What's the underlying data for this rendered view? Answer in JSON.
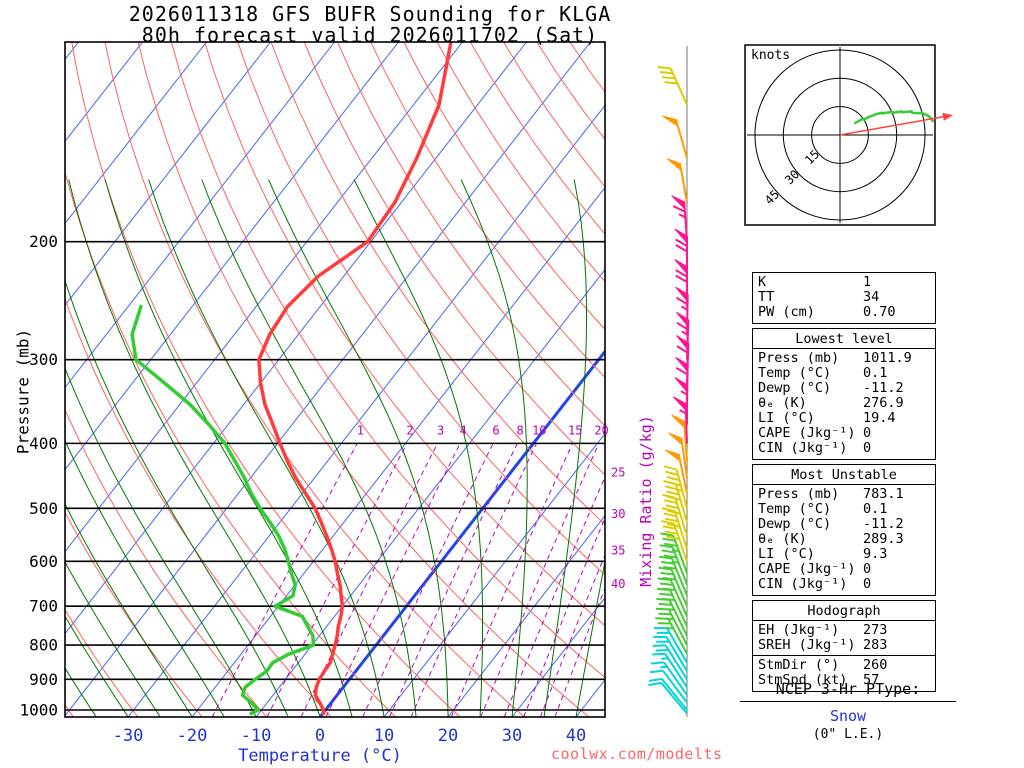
{
  "title": {
    "line1": "2026011318 GFS BUFR Sounding for KLGA",
    "line2": "80h forecast valid 2026011702 (Sat)"
  },
  "skewt": {
    "xlabel": "Temperature (°C)",
    "ylabel": "Pressure (mb)",
    "mixing_ratio_label": "Mixing Ratio (g/kg)",
    "pressure_ticks": [
      200,
      300,
      400,
      500,
      600,
      700,
      800,
      900,
      1000
    ],
    "temp_ticks": [
      -30,
      -20,
      -10,
      0,
      10,
      20,
      30,
      40
    ],
    "mixing_ratio_values": [
      1,
      2,
      3,
      4,
      6,
      8,
      10,
      15,
      20,
      25,
      30,
      35,
      40
    ],
    "colors": {
      "isotherm": "#4466EE",
      "zero_isotherm": "#2244EE",
      "dry_adiabat": "#FF6060",
      "moist_adiabat": "#007700",
      "mixing_ratio": "#BB00BB",
      "temperature": "#FF3B3B",
      "dewpoint": "#33CC33",
      "temp_axis": "#2233CC"
    },
    "barb_colors": [
      {
        "max_kt": 22,
        "color": "#00D5D5"
      },
      {
        "max_kt": 35,
        "color": "#44CC33"
      },
      {
        "max_kt": 45,
        "color": "#DDCC00"
      },
      {
        "max_kt": 52,
        "color": "#FF9900"
      },
      {
        "max_kt": 200,
        "color": "#FF1493"
      }
    ]
  },
  "chart_data": {
    "type": "skewt-sounding",
    "station": "KLGA",
    "model": "GFS BUFR",
    "run": "2026011318",
    "valid": "2026011702 (Sat)",
    "forecast_hour": 80,
    "pressure_axis_mb": [
      100,
      1024
    ],
    "temp_axis_c": [
      -30,
      40
    ],
    "sounding": {
      "pressures_mb": [
        1012,
        1000,
        975,
        950,
        925,
        900,
        875,
        850,
        825,
        800,
        775,
        750,
        725,
        700,
        675,
        650,
        625,
        600,
        575,
        550,
        525,
        500,
        475,
        450,
        425,
        400,
        375,
        350,
        325,
        300,
        275,
        250,
        225,
        200,
        175,
        150,
        125,
        100
      ],
      "temperature_c": [
        0.1,
        -0.3,
        -1.8,
        -3.4,
        -4.2,
        -4.7,
        -4.9,
        -5.0,
        -5.7,
        -6.4,
        -7.2,
        -8.2,
        -9.0,
        -10.0,
        -11.5,
        -13.0,
        -14.8,
        -16.6,
        -18.7,
        -21.0,
        -23.5,
        -26.2,
        -29.5,
        -33.0,
        -36.3,
        -39.6,
        -43.0,
        -46.7,
        -50.0,
        -53.1,
        -54.5,
        -55.1,
        -54.0,
        -50.5,
        -51.0,
        -53.0,
        -56.0,
        -62.0
      ],
      "dewpoint_c": [
        -11.2,
        -10.5,
        -12.5,
        -14.8,
        -15.3,
        -14.7,
        -13.9,
        -14.0,
        -12.5,
        -9.8,
        -11.0,
        -13.0,
        -15.0,
        -20.5,
        -19.0,
        -20.0,
        -22.0,
        -23.9,
        -26.0,
        -28.5,
        -31.5,
        -34.8,
        -38.0,
        -41.0,
        -44.5,
        -48.2,
        -53.0,
        -58.4,
        -65.0,
        -72.3,
        -76.0,
        -78.0,
        null,
        null,
        null,
        null,
        null,
        null
      ]
    },
    "winds": {
      "pressures_mb": [
        1012,
        1000,
        975,
        950,
        925,
        900,
        875,
        850,
        825,
        800,
        775,
        750,
        725,
        700,
        675,
        650,
        625,
        600,
        575,
        550,
        525,
        500,
        475,
        450,
        425,
        400,
        375,
        350,
        325,
        300,
        275,
        250,
        225,
        200,
        175,
        150,
        125,
        100
      ],
      "direction_deg": [
        230,
        231,
        233,
        235,
        237,
        238,
        239,
        240,
        242,
        243,
        244,
        245,
        246,
        247,
        248,
        249,
        250,
        251,
        252,
        253,
        254,
        255,
        258,
        262,
        266,
        268,
        270,
        271,
        272,
        272,
        271,
        270,
        270,
        266,
        260,
        254,
        246,
        238
      ],
      "speed_kt": [
        10,
        10,
        12,
        15,
        15,
        18,
        20,
        22,
        25,
        25,
        27,
        28,
        30,
        30,
        32,
        35,
        35,
        38,
        40,
        40,
        42,
        45,
        48,
        50,
        52,
        55,
        57,
        60,
        62,
        65,
        67,
        70,
        68,
        65,
        52,
        48,
        42,
        38
      ]
    }
  },
  "hodograph": {
    "label": "knots",
    "ring_labels": [
      15,
      30,
      45
    ],
    "storm_dir_deg": 260,
    "storm_spd_kt": 57
  },
  "stats": {
    "sections": [
      {
        "title": null,
        "rows": [
          [
            "K",
            "1"
          ],
          [
            "TT",
            "34"
          ],
          [
            "PW (cm)",
            "0.70"
          ]
        ]
      },
      {
        "title": "Lowest level",
        "rows": [
          [
            "Press (mb)",
            "1011.9"
          ],
          [
            "Temp (°C)",
            "0.1"
          ],
          [
            "Dewp (°C)",
            "-11.2"
          ],
          [
            "θₑ (K)",
            "276.9"
          ],
          [
            "LI (°C)",
            "19.4"
          ],
          [
            "CAPE (Jkg⁻¹)",
            "0"
          ],
          [
            "CIN (Jkg⁻¹)",
            "0"
          ]
        ]
      },
      {
        "title": "Most Unstable",
        "rows": [
          [
            "Press (mb)",
            "783.1"
          ],
          [
            "Temp (°C)",
            "0.1"
          ],
          [
            "Dewp (°C)",
            "-11.2"
          ],
          [
            "θₑ (K)",
            "289.3"
          ],
          [
            "LI (°C)",
            "9.3"
          ],
          [
            "CAPE (Jkg⁻¹)",
            "0"
          ],
          [
            "CIN (Jkg⁻¹)",
            "0"
          ]
        ]
      },
      {
        "title": "Hodograph",
        "rows": [
          [
            "EH (Jkg⁻¹)",
            "273"
          ],
          [
            "SREH (Jkg⁻¹)",
            "283"
          ]
        ],
        "rows2": [
          [
            "StmDir (°)",
            "260"
          ],
          [
            "StmSpd (kt)",
            "57"
          ]
        ]
      }
    ]
  },
  "ptype": {
    "heading": "NCEP 3-Hr PType:",
    "value": "Snow",
    "extra": "(0\" L.E.)"
  },
  "watermark": "coolwx.com/modelts"
}
